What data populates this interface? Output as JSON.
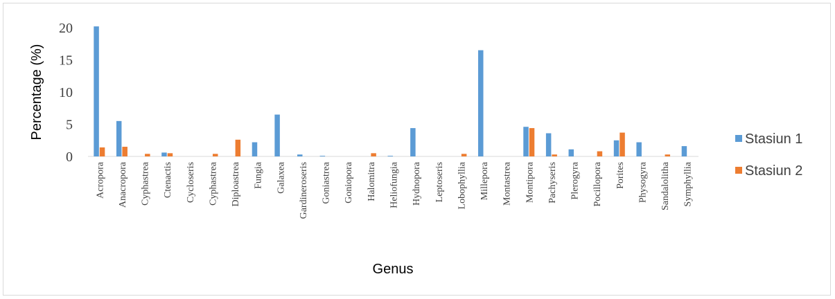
{
  "chart_data": {
    "type": "bar",
    "xlabel": "Genus",
    "ylabel": "Percentage (%)",
    "ylim": [
      0,
      20
    ],
    "yticks": [
      "0",
      "5",
      "10",
      "15",
      "20"
    ],
    "grid": false,
    "legend_position": "right",
    "categories": [
      "Acropora",
      "Anacropora",
      "Cyphastrea",
      "Ctenactis",
      "Cycloseris",
      "Cyphastrea",
      "Diploastrea",
      "Fungia",
      "Galaxea",
      "Gardineroseris",
      "Goniastrea",
      "Goniopora",
      "Halomitra",
      "Heliofungia",
      "Hydnopora",
      "Leptoseris",
      "Lobophyllia",
      "Millepora",
      "Montastrea",
      "Montipora",
      "Pachyseris",
      "Plerogyra",
      "Pocillopora",
      "Porites",
      "Physogyra",
      "Sandalolitha",
      "Symphyllia"
    ],
    "series": [
      {
        "name": "Stasiun 1",
        "color": "#5B9BD5",
        "values": [
          20.2,
          5.5,
          0,
          0.6,
          0,
          0,
          0,
          2.2,
          6.5,
          0.3,
          0.1,
          0,
          0,
          0.1,
          4.4,
          0,
          0,
          16.5,
          0,
          4.6,
          3.6,
          1.1,
          0,
          2.5,
          2.2,
          0,
          1.6
        ]
      },
      {
        "name": "Stasiun 2",
        "color": "#ED7D31",
        "values": [
          1.4,
          1.5,
          0.4,
          0.5,
          0,
          0.4,
          2.6,
          0,
          0,
          0,
          0,
          0,
          0.5,
          0,
          0,
          0,
          0.4,
          0,
          0,
          4.4,
          0.3,
          0,
          0.8,
          3.7,
          0,
          0.3,
          0
        ]
      }
    ]
  }
}
